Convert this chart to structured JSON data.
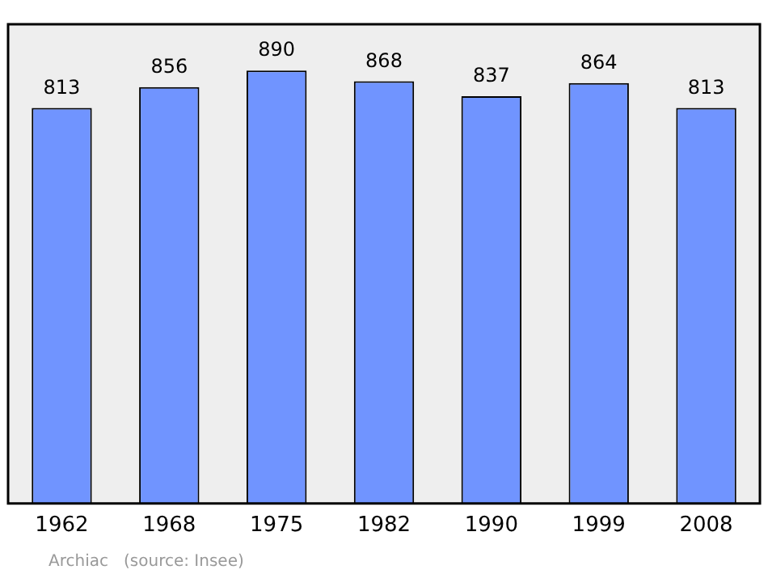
{
  "chart_data": {
    "type": "bar",
    "categories": [
      "1962",
      "1968",
      "1975",
      "1982",
      "1990",
      "1999",
      "2008"
    ],
    "values": [
      813,
      856,
      890,
      868,
      837,
      864,
      813
    ],
    "color": "#7094ff",
    "ylim": [
      0,
      985
    ],
    "data_labels": true,
    "grid": false,
    "legend": false,
    "annotations": [
      "Archiac   (source: Insee)"
    ]
  }
}
